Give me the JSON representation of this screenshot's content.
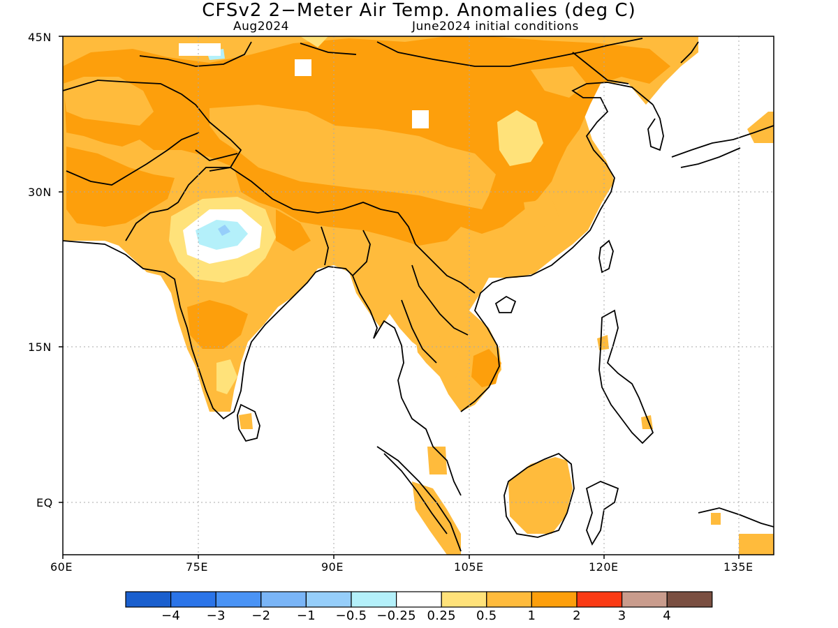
{
  "title": "CFSv2 2−Meter Air Temp. Anomalies (deg C)",
  "subtitle_left": "Aug2024",
  "subtitle_right": "June2024 initial conditions",
  "lat_labels": [
    "45N",
    "30N",
    "15N",
    "EQ"
  ],
  "lon_labels": [
    "60E",
    "75E",
    "90E",
    "105E",
    "120E",
    "135E"
  ],
  "colorbar": {
    "colors": [
      "#1a5fce",
      "#2b74e8",
      "#4a93f5",
      "#7ab5f7",
      "#96cefa",
      "#b4f0fa",
      "#ffffff",
      "#ffe27a",
      "#ffbb3c",
      "#fd9f0c",
      "#fa3a14",
      "#c99c8d",
      "#7a4f41"
    ],
    "labels": [
      "−4",
      "−3",
      "−2",
      "−1",
      "−0.5",
      "−0.25",
      "0.25",
      "0.5",
      "1",
      "2",
      "3",
      "4"
    ]
  },
  "colors": {
    "strong_warm": "#fd9f0c",
    "warm": "#ffbb3c",
    "mild": "#ffe27a",
    "cool": "#b4f0fa",
    "cold": "#96cefa",
    "coast": "#000000"
  }
}
